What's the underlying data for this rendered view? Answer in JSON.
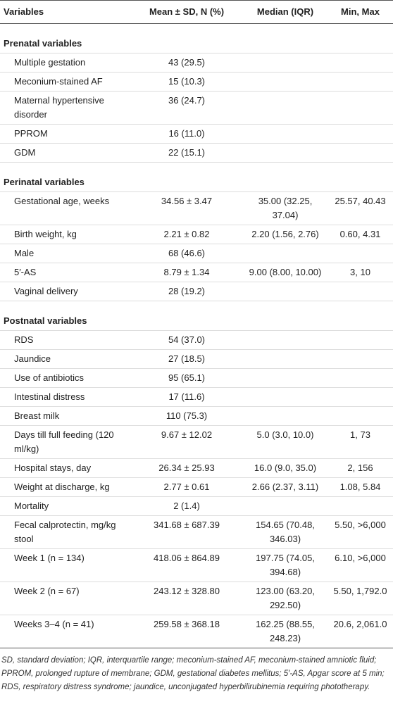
{
  "table": {
    "header": [
      "Variables",
      "Mean ± SD, N (%)",
      "Median (IQR)",
      "Min, Max"
    ],
    "sections": [
      {
        "title": "Prenatal variables",
        "rows": [
          [
            "Multiple gestation",
            "43 (29.5)",
            null,
            null
          ],
          [
            "Meconium-stained AF",
            "15 (10.3)",
            null,
            null
          ],
          [
            "Maternal hypertensive disorder",
            "36 (24.7)",
            null,
            null
          ],
          [
            "PPROM",
            "16 (11.0)",
            null,
            null
          ],
          [
            "GDM",
            "22 (15.1)",
            null,
            null
          ]
        ]
      },
      {
        "title": "Perinatal variables",
        "rows": [
          [
            "Gestational age, weeks",
            "34.56 ± 3.47",
            "35.00 (32.25, 37.04)",
            "25.57, 40.43"
          ],
          [
            "Birth weight, kg",
            "2.21 ± 0.82",
            "2.20 (1.56, 2.76)",
            "0.60, 4.31"
          ],
          [
            "Male",
            "68 (46.6)",
            null,
            null
          ],
          [
            "5′-AS",
            "8.79 ± 1.34",
            "9.00 (8.00, 10.00)",
            "3, 10"
          ],
          [
            "Vaginal delivery",
            "28 (19.2)",
            null,
            null
          ]
        ]
      },
      {
        "title": "Postnatal variables",
        "rows": [
          [
            "RDS",
            "54 (37.0)",
            null,
            null
          ],
          [
            "Jaundice",
            "27 (18.5)",
            null,
            null
          ],
          [
            "Use of antibiotics",
            "95 (65.1)",
            null,
            null
          ],
          [
            "Intestinal distress",
            "17 (11.6)",
            null,
            null
          ],
          [
            "Breast milk",
            "110 (75.3)",
            null,
            null
          ],
          [
            "Days till full feeding (120 ml/kg)",
            "9.67 ± 12.02",
            "5.0 (3.0, 10.0)",
            "1, 73"
          ],
          [
            "Hospital stays, day",
            "26.34 ± 25.93",
            "16.0 (9.0, 35.0)",
            "2, 156"
          ],
          [
            "Weight at discharge, kg",
            "2.77 ± 0.61",
            "2.66 (2.37, 3.11)",
            "1.08, 5.84"
          ],
          [
            "Mortality",
            "2 (1.4)",
            null,
            null
          ],
          [
            "Fecal calprotectin, mg/kg stool",
            "341.68 ± 687.39",
            "154.65 (70.48, 346.03)",
            "5.50, >6,000"
          ],
          [
            "Week 1 (n = 134)",
            "418.06 ± 864.89",
            "197.75 (74.05, 394.68)",
            "6.10, >6,000"
          ],
          [
            "Week 2 (n = 67)",
            "243.12 ± 328.80",
            "123.00 (63.20, 292.50)",
            "5.50, 1,792.0"
          ],
          [
            "Weeks 3–4 (n = 41)",
            "259.58 ± 368.18",
            "162.25 (88.55, 248.23)",
            "20.6, 2,061.0"
          ]
        ]
      }
    ]
  },
  "footnote": "SD, standard deviation; IQR, interquartile range; meconium-stained AF, meconium-stained amniotic fluid; PPROM, prolonged rupture of membrane; GDM, gestational diabetes mellitus; 5′-AS, Apgar score at 5 min; RDS, respiratory distress syndrome; jaundice, unconjugated hyperbilirubinemia requiring phototherapy."
}
